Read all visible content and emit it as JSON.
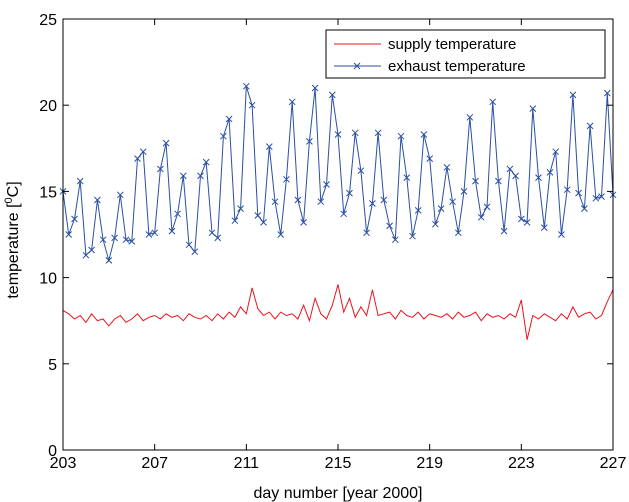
{
  "chart_data": {
    "type": "line",
    "xlabel": "day number [year 2000]",
    "ylabel_main": "temperature [",
    "ylabel_sup": "0",
    "ylabel_unit": "C]",
    "xlim": [
      203,
      227
    ],
    "ylim": [
      0,
      25
    ],
    "xticks": [
      203,
      207,
      211,
      215,
      219,
      223,
      227
    ],
    "yticks": [
      0,
      5,
      10,
      15,
      20,
      25
    ],
    "legend_position": "top-right",
    "series": [
      {
        "name": "supply temperature",
        "color": "#e8141c",
        "marker": "none",
        "x": [
          203.0,
          203.25,
          203.5,
          203.75,
          204.0,
          204.25,
          204.5,
          204.75,
          205.0,
          205.25,
          205.5,
          205.75,
          206.0,
          206.25,
          206.5,
          206.75,
          207.0,
          207.25,
          207.5,
          207.75,
          208.0,
          208.25,
          208.5,
          208.75,
          209.0,
          209.25,
          209.5,
          209.75,
          210.0,
          210.25,
          210.5,
          210.75,
          211.0,
          211.25,
          211.5,
          211.75,
          212.0,
          212.25,
          212.5,
          212.75,
          213.0,
          213.25,
          213.5,
          213.75,
          214.0,
          214.25,
          214.5,
          214.75,
          215.0,
          215.25,
          215.5,
          215.75,
          216.0,
          216.25,
          216.5,
          216.75,
          217.0,
          217.25,
          217.5,
          217.75,
          218.0,
          218.25,
          218.5,
          218.75,
          219.0,
          219.25,
          219.5,
          219.75,
          220.0,
          220.25,
          220.5,
          220.75,
          221.0,
          221.25,
          221.5,
          221.75,
          222.0,
          222.25,
          222.5,
          222.75,
          223.0,
          223.25,
          223.5,
          223.75,
          224.0,
          224.25,
          224.5,
          224.75,
          225.0,
          225.25,
          225.5,
          225.75,
          226.0,
          226.25,
          226.5,
          226.75,
          227.0
        ],
        "y": [
          8.1,
          7.9,
          7.6,
          7.8,
          7.4,
          7.9,
          7.5,
          7.6,
          7.2,
          7.6,
          7.8,
          7.4,
          7.6,
          7.9,
          7.5,
          7.7,
          7.8,
          7.6,
          7.9,
          7.7,
          7.8,
          7.5,
          7.9,
          7.7,
          7.6,
          7.8,
          7.5,
          7.9,
          7.6,
          8.0,
          7.7,
          8.3,
          7.9,
          9.4,
          8.2,
          7.8,
          8.0,
          7.6,
          8.0,
          7.8,
          7.9,
          7.6,
          8.4,
          7.5,
          8.8,
          7.9,
          7.6,
          8.4,
          9.6,
          8.0,
          8.8,
          7.7,
          8.3,
          7.8,
          9.3,
          7.8,
          7.9,
          8.0,
          7.6,
          8.1,
          7.8,
          7.7,
          8.0,
          7.6,
          7.9,
          7.8,
          7.7,
          7.9,
          7.6,
          8.0,
          7.7,
          7.8,
          8.0,
          7.5,
          7.9,
          7.7,
          7.8,
          7.6,
          7.9,
          7.7,
          8.7,
          6.4,
          7.8,
          7.6,
          7.9,
          7.7,
          7.5,
          7.9,
          7.6,
          8.3,
          7.7,
          7.9,
          8.0,
          7.6,
          7.8,
          8.6,
          9.3
        ]
      },
      {
        "name": "exhaust temperature",
        "color": "#2a4fa3",
        "marker": "x",
        "x": [
          203.0,
          203.25,
          203.5,
          203.75,
          204.0,
          204.25,
          204.5,
          204.75,
          205.0,
          205.25,
          205.5,
          205.75,
          206.0,
          206.25,
          206.5,
          206.75,
          207.0,
          207.25,
          207.5,
          207.75,
          208.0,
          208.25,
          208.5,
          208.75,
          209.0,
          209.25,
          209.5,
          209.75,
          210.0,
          210.25,
          210.5,
          210.75,
          211.0,
          211.25,
          211.5,
          211.75,
          212.0,
          212.25,
          212.5,
          212.75,
          213.0,
          213.25,
          213.5,
          213.75,
          214.0,
          214.25,
          214.5,
          214.75,
          215.0,
          215.25,
          215.5,
          215.75,
          216.0,
          216.25,
          216.5,
          216.75,
          217.0,
          217.25,
          217.5,
          217.75,
          218.0,
          218.25,
          218.5,
          218.75,
          219.0,
          219.25,
          219.5,
          219.75,
          220.0,
          220.25,
          220.5,
          220.75,
          221.0,
          221.25,
          221.5,
          221.75,
          222.0,
          222.25,
          222.5,
          222.75,
          223.0,
          223.25,
          223.5,
          223.75,
          224.0,
          224.25,
          224.5,
          224.75,
          225.0,
          225.25,
          225.5,
          225.75,
          226.0,
          226.25,
          226.5,
          226.75,
          227.0
        ],
        "y": [
          15.0,
          12.5,
          13.4,
          15.6,
          11.3,
          11.6,
          14.5,
          12.2,
          11.0,
          12.3,
          14.8,
          12.2,
          12.1,
          16.9,
          17.3,
          12.5,
          12.6,
          16.3,
          17.8,
          12.7,
          13.7,
          15.9,
          11.9,
          11.5,
          15.9,
          16.7,
          12.6,
          12.3,
          18.2,
          19.2,
          13.3,
          14.0,
          21.1,
          20.0,
          13.6,
          13.2,
          17.6,
          14.4,
          12.5,
          15.7,
          20.2,
          14.5,
          13.2,
          17.9,
          21.0,
          14.4,
          15.4,
          20.6,
          18.3,
          13.7,
          14.9,
          18.4,
          16.2,
          12.6,
          14.3,
          18.4,
          14.5,
          13.0,
          12.2,
          18.2,
          15.8,
          12.4,
          13.9,
          18.3,
          16.9,
          13.1,
          14.0,
          16.4,
          14.4,
          12.6,
          15.0,
          19.3,
          15.6,
          13.5,
          14.1,
          20.2,
          15.6,
          12.7,
          16.3,
          15.9,
          13.4,
          13.2,
          19.8,
          15.8,
          12.9,
          16.1,
          17.3,
          12.5,
          15.1,
          20.6,
          14.9,
          14.0,
          18.8,
          14.6,
          14.7,
          20.7,
          14.8
        ]
      }
    ]
  }
}
